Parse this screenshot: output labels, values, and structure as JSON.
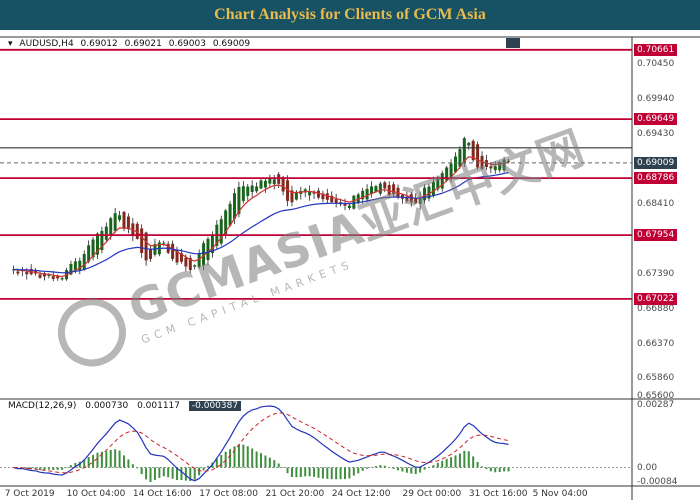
{
  "title": "Chart Analysis for Clients of GCM Asia",
  "quote": {
    "symbol_icon": "▾",
    "symbol": "AUDUSD,H4",
    "open": "0.69012",
    "high": "0.69021",
    "low": "0.69003",
    "close": "0.69009"
  },
  "watermark": {
    "main": "GCMASIA亚汇中文网",
    "sub": "GCM CAPITAL MARKETS"
  },
  "colors": {
    "titlebar_bg": "#175264",
    "titlebar_text": "#e9ba4d",
    "level_line": "#c00034",
    "badge_red_bg": "#c00034",
    "badge_dark_bg": "#2e4150",
    "bull": "#19641d",
    "bear": "#82281e",
    "wick": "#222222",
    "ma_fast": "#d03030",
    "ma_slow": "#2338c0",
    "macd_hist": "#3f8f3f",
    "macd_line": "#2333bb",
    "macd_signal": "#cc2222",
    "axis_text": "#4a4a4a"
  },
  "chart_data": {
    "type": "candlestick",
    "symbol": "AUDUSD",
    "timeframe": "H4",
    "ohlc_display": [
      "0.69012",
      "0.69021",
      "0.69003",
      "0.69009"
    ],
    "y_axis": {
      "price_max": 0.7095,
      "price_min": 0.6556,
      "tick_labels": [
        {
          "text": "0.70450",
          "price": 0.7045
        },
        {
          "text": "0.69940",
          "price": 0.6994
        },
        {
          "text": "0.69430",
          "price": 0.6943
        },
        {
          "text": "0.68410",
          "price": 0.6841
        },
        {
          "text": "0.67390",
          "price": 0.6739
        },
        {
          "text": "0.66880",
          "price": 0.6688
        },
        {
          "text": "0.66370",
          "price": 0.6637
        },
        {
          "text": "0.65860",
          "price": 0.6586
        },
        {
          "text": "0.65600",
          "price": 0.656
        }
      ]
    },
    "levels": [
      {
        "price": 0.70661,
        "label": "0.70661",
        "kind": "resistance"
      },
      {
        "price": 0.69649,
        "label": "0.69649",
        "kind": "resistance"
      },
      {
        "price": 0.68786,
        "label": "0.68786",
        "kind": "support"
      },
      {
        "price": 0.67954,
        "label": "0.67954",
        "kind": "support"
      },
      {
        "price": 0.67022,
        "label": "0.67022",
        "kind": "support"
      }
    ],
    "gray_level": {
      "price": 0.6923
    },
    "current_price": {
      "price": 0.69009,
      "label": "0.69009"
    },
    "x_axis": {
      "labels": [
        {
          "text": "7 Oct 2019",
          "bar": 4
        },
        {
          "text": "10 Oct 04:00",
          "bar": 19
        },
        {
          "text": "14 Oct 16:00",
          "bar": 34
        },
        {
          "text": "17 Oct 08:00",
          "bar": 49
        },
        {
          "text": "21 Oct 20:00",
          "bar": 64
        },
        {
          "text": "24 Oct 12:00",
          "bar": 79
        },
        {
          "text": "29 Oct 00:00",
          "bar": 95
        },
        {
          "text": "31 Oct 16:00",
          "bar": 110
        },
        {
          "text": "5 Nov 04:00",
          "bar": 124
        }
      ]
    },
    "bars": 113,
    "seed": 20191105,
    "price_waypoints": [
      [
        0,
        0.6745
      ],
      [
        6,
        0.6738
      ],
      [
        11,
        0.6733
      ],
      [
        16,
        0.6758
      ],
      [
        24,
        0.6822
      ],
      [
        28,
        0.68
      ],
      [
        31,
        0.6768
      ],
      [
        34,
        0.6782
      ],
      [
        38,
        0.676
      ],
      [
        41,
        0.675
      ],
      [
        46,
        0.6792
      ],
      [
        52,
        0.6858
      ],
      [
        56,
        0.6868
      ],
      [
        60,
        0.6878
      ],
      [
        63,
        0.6852
      ],
      [
        68,
        0.686
      ],
      [
        72,
        0.6848
      ],
      [
        76,
        0.6838
      ],
      [
        80,
        0.6855
      ],
      [
        84,
        0.6868
      ],
      [
        88,
        0.6852
      ],
      [
        92,
        0.6846
      ],
      [
        96,
        0.687
      ],
      [
        100,
        0.6898
      ],
      [
        103,
        0.6928
      ],
      [
        106,
        0.69
      ],
      [
        109,
        0.6892
      ],
      [
        112,
        0.6901
      ]
    ],
    "moving_averages": [
      {
        "period": 8,
        "color_key": "ma_fast"
      },
      {
        "period": 30,
        "color_key": "ma_slow"
      }
    ],
    "macd": {
      "name": "MACD",
      "params": "(12,26,9)",
      "values": [
        "0.000730",
        "0.001117",
        "-0.000387"
      ],
      "fast": 12,
      "slow": 26,
      "signal": 9,
      "axis_top_label": "0.00287",
      "axis_zero_label": "0.00",
      "axis_bottom_label": "-0.00084"
    }
  }
}
